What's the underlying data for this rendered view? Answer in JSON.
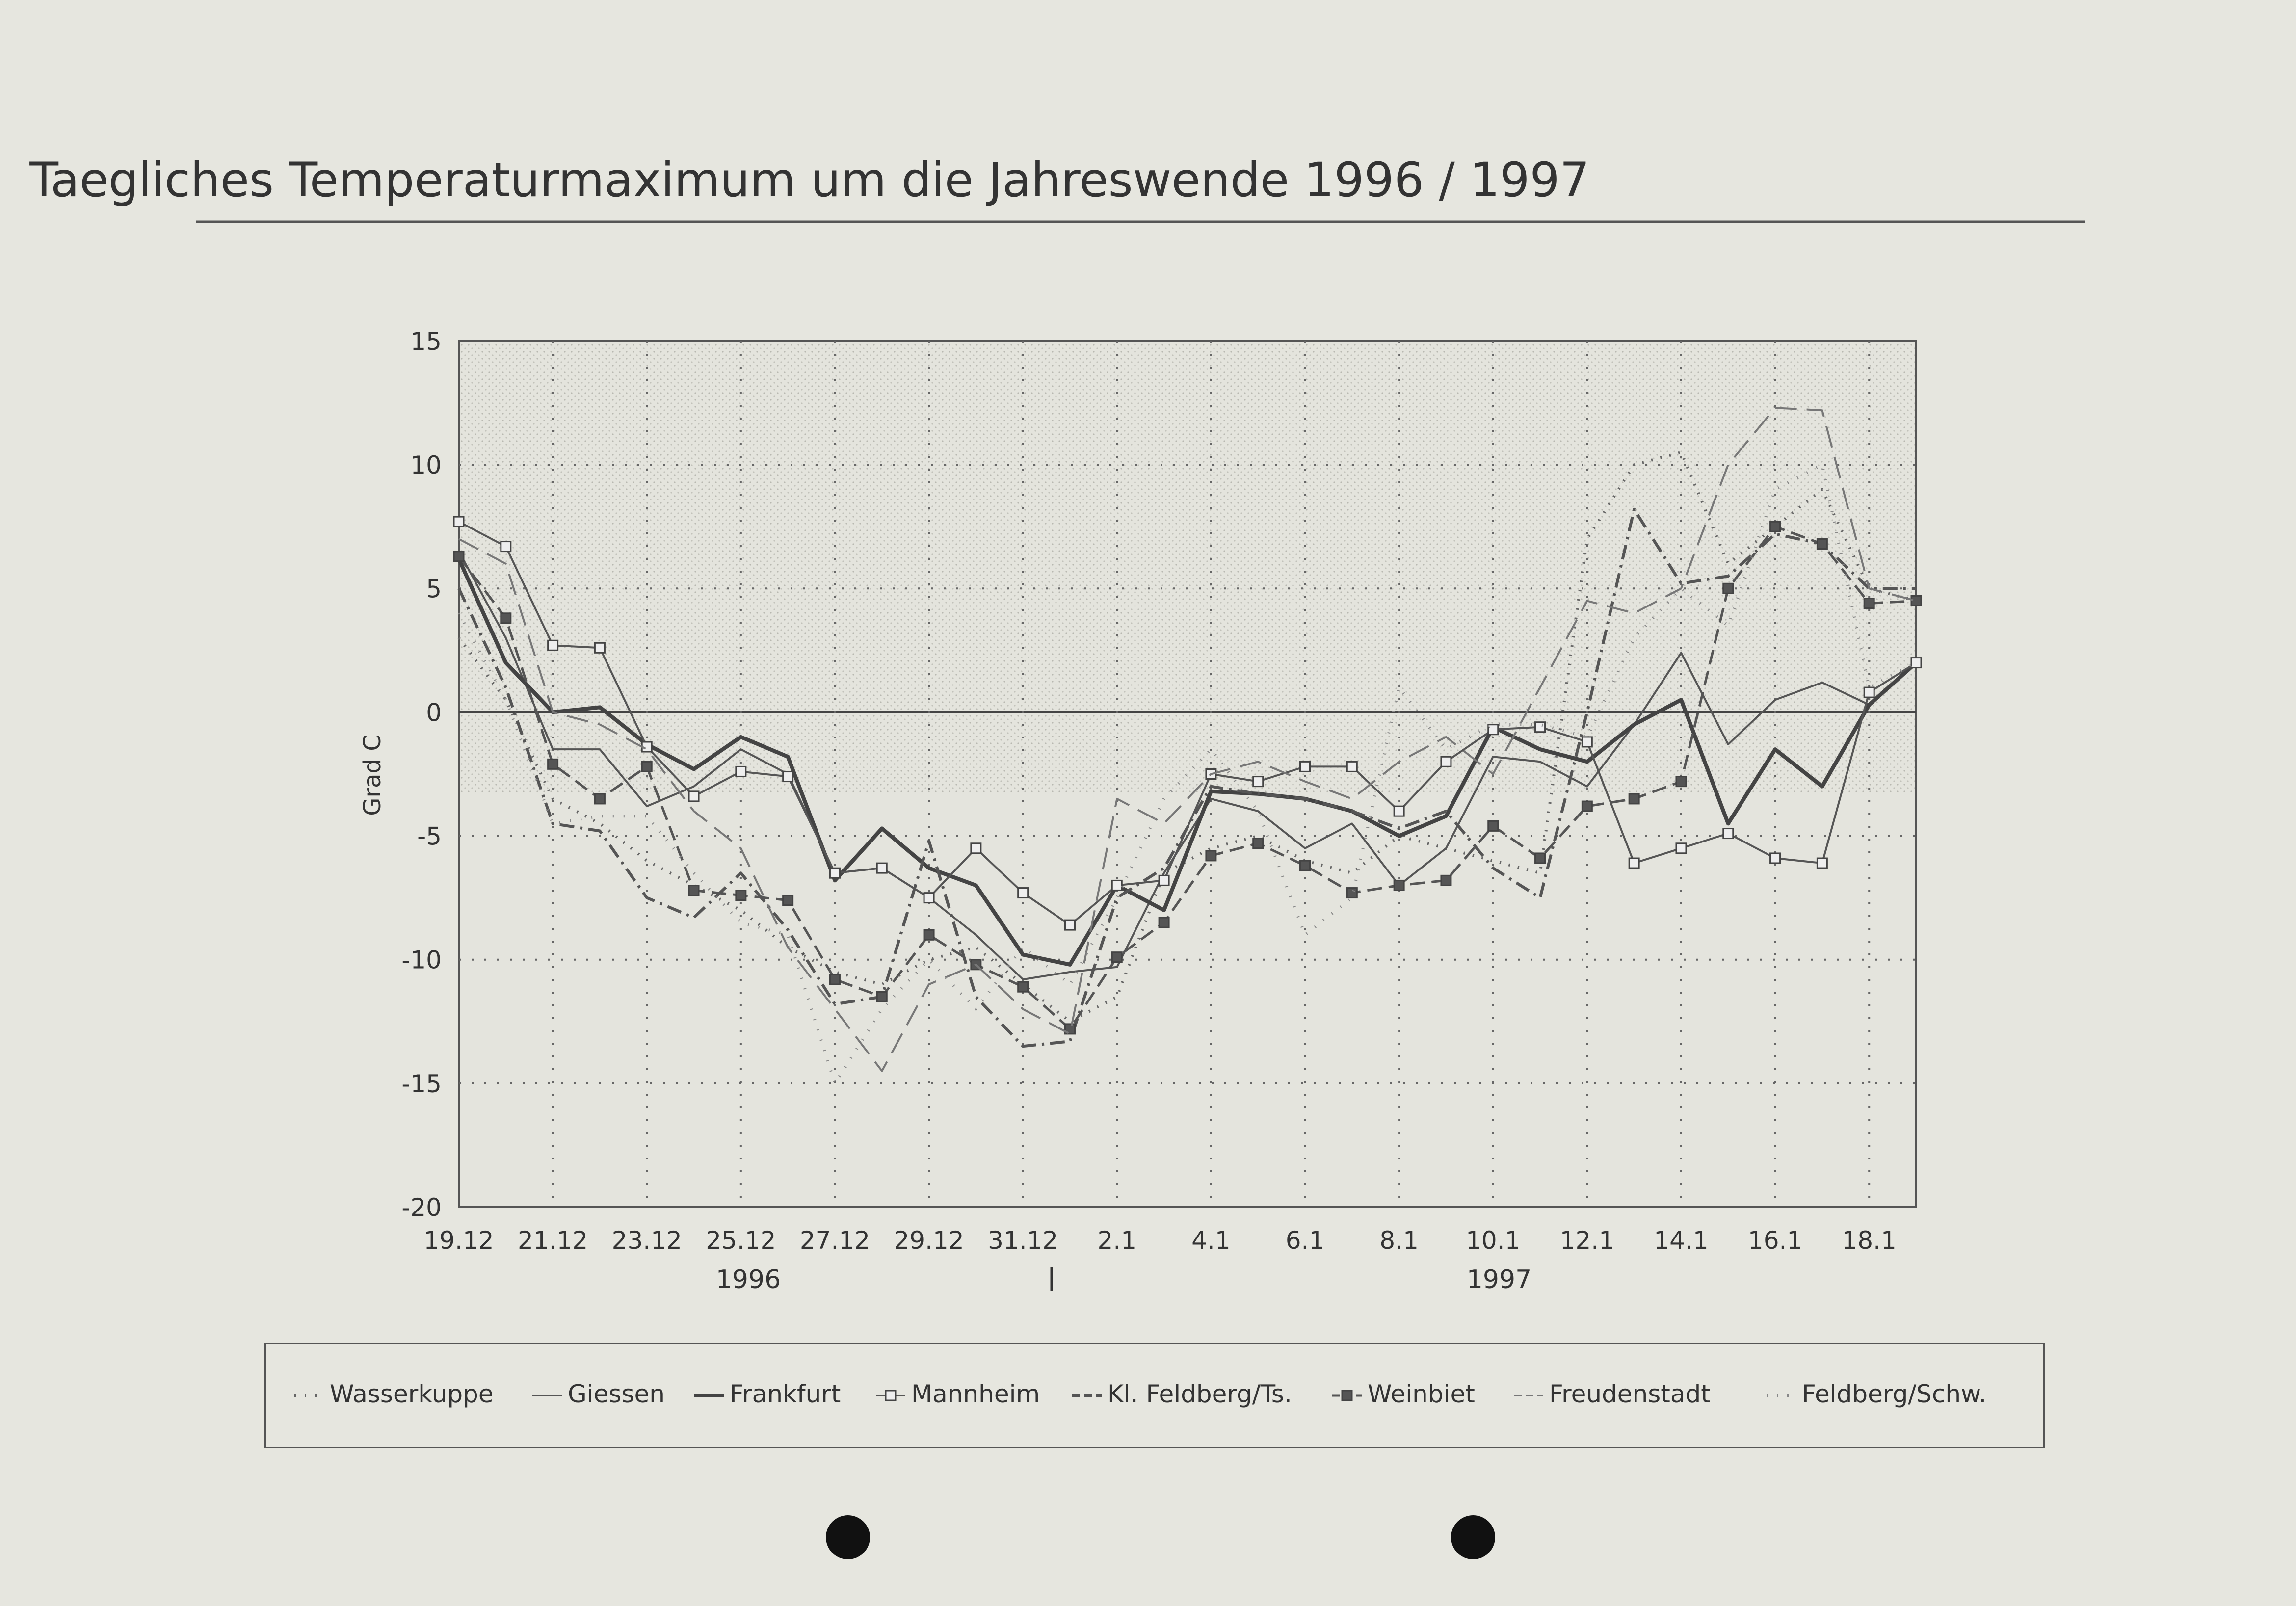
{
  "chart_data": {
    "type": "line",
    "title": "Taegliches Temperaturmaximum um die Jahreswende 1996 / 1997",
    "ylabel": "Grad C",
    "ylim": [
      -20,
      15
    ],
    "yticks": [
      "15",
      "10",
      "5",
      "0",
      "-5",
      "-10",
      "-15",
      "-20"
    ],
    "grid": true,
    "legend_position": "bottom",
    "x": [
      "19.12",
      "20.12",
      "21.12",
      "22.12",
      "23.12",
      "24.12",
      "25.12",
      "26.12",
      "27.12",
      "28.12",
      "29.12",
      "30.12",
      "31.12",
      "1.1",
      "2.1",
      "3.1",
      "4.1",
      "5.1",
      "6.1",
      "7.1",
      "8.1",
      "9.1",
      "10.1",
      "11.1",
      "12.1",
      "13.1",
      "14.1",
      "15.1",
      "16.1",
      "17.1",
      "18.1",
      "19.1"
    ],
    "xtick_labels": [
      "19.12",
      "21.12",
      "23.12",
      "25.12",
      "27.12",
      "29.12",
      "31.12",
      "2.1",
      "4.1",
      "6.1",
      "8.1",
      "10.1",
      "12.1",
      "14.1",
      "16.1",
      "18.1"
    ],
    "year_labels": [
      "1996",
      "1997"
    ],
    "series": [
      {
        "name": "Wasserkuppe",
        "values": [
          3,
          0.5,
          -3.5,
          -4.5,
          -6,
          -7,
          -8,
          -9.5,
          -10.5,
          -11,
          -10,
          -9.5,
          -11,
          -12.5,
          -11.5,
          -6.5,
          -5.5,
          -5,
          -6,
          -6.5,
          -5,
          -5.5,
          -6,
          -6.5,
          7,
          10,
          10.5,
          6,
          7.5,
          9,
          5,
          4.5
        ]
      },
      {
        "name": "Giessen",
        "values": [
          6.5,
          3,
          -1.5,
          -1.5,
          -3.8,
          -3,
          -1.5,
          -2.5,
          -6.5,
          -6.3,
          -7.5,
          -9,
          -10.8,
          -10.5,
          -10.3,
          -6.5,
          -3.5,
          -4,
          -5.5,
          -4.5,
          -7,
          -5.5,
          -1.8,
          -2,
          -3,
          -0.5,
          2.4,
          -1.3,
          0.5,
          1.2,
          0.3,
          2
        ]
      },
      {
        "name": "Frankfurt",
        "values": [
          6.2,
          2,
          0,
          0.2,
          -1.3,
          -2.3,
          -1,
          -1.8,
          -6.8,
          -4.7,
          -6.3,
          -7,
          -9.8,
          -10.2,
          -7,
          -8,
          -3.2,
          -3.3,
          -3.5,
          -4,
          -5,
          -4.2,
          -0.6,
          -1.5,
          -2,
          -0.5,
          0.5,
          -4.5,
          -1.5,
          -3,
          0.3,
          2
        ]
      },
      {
        "name": "Mannheim",
        "values": [
          7.7,
          6.7,
          2.7,
          2.6,
          -1.4,
          -3.4,
          -2.4,
          -2.6,
          -6.5,
          -6.3,
          -7.5,
          -5.5,
          -7.3,
          -8.6,
          -7,
          -6.8,
          -2.5,
          -2.8,
          -2.2,
          -2.2,
          -4,
          -2,
          -0.7,
          -0.6,
          -1.2,
          -6.1,
          -5.5,
          -4.9,
          -5.9,
          -6.1,
          0.8,
          2
        ]
      },
      {
        "name": "Kl. Feldberg/Ts.",
        "values": [
          5,
          1,
          -4.5,
          -4.8,
          -7.5,
          -8.3,
          -6.5,
          -8.8,
          -11.8,
          -11.5,
          -5.2,
          -11.5,
          -13.5,
          -13.3,
          -7.5,
          -6.3,
          -3,
          -3.3,
          -3.5,
          -4,
          -4.7,
          -4,
          -6.3,
          -7.5,
          0,
          8.2,
          5.2,
          5.5,
          7.2,
          6.8,
          5,
          5
        ]
      },
      {
        "name": "Weinbiet",
        "values": [
          6.3,
          3.8,
          -2.1,
          -3.5,
          -2.2,
          -7.2,
          -7.4,
          -7.6,
          -10.8,
          -11.5,
          -9,
          -10.2,
          -11.1,
          -12.8,
          -9.9,
          -8.5,
          -5.8,
          -5.3,
          -6.2,
          -7.3,
          -7,
          -6.8,
          -4.6,
          -5.9,
          -3.8,
          -3.5,
          -2.8,
          5,
          7.5,
          6.8,
          4.4,
          4.5
        ]
      },
      {
        "name": "Freudenstadt",
        "values": [
          7,
          6,
          0,
          -0.5,
          -1.5,
          -4,
          -5.5,
          -9.5,
          -12,
          -14.5,
          -11,
          -10.2,
          -12,
          -13,
          -3.5,
          -4.5,
          -2.5,
          -2,
          -2.8,
          -3.5,
          -2,
          -1,
          -2.5,
          1,
          4.5,
          4,
          5,
          10,
          12.3,
          12.2,
          5,
          4.5
        ]
      },
      {
        "name": "Feldberg/Schw.",
        "values": [
          4,
          0.5,
          -4.5,
          -4.2,
          -4.2,
          -6.5,
          -8.5,
          -9,
          -15,
          -12,
          -10,
          -12,
          -9.5,
          -11,
          -7.5,
          -3.5,
          -1.5,
          -4,
          -9,
          -7.5,
          1,
          -1.5,
          -0.5,
          -0.5,
          -1,
          3,
          5,
          3.5,
          9,
          10,
          1,
          2
        ]
      }
    ]
  }
}
